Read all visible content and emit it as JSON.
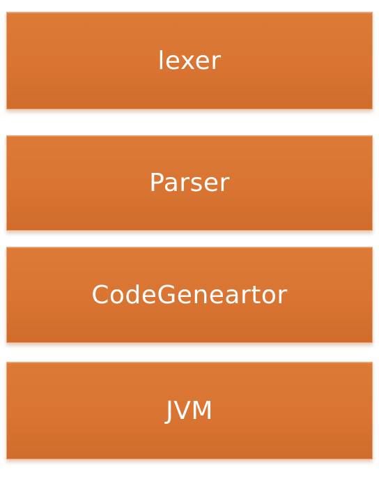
{
  "diagram": {
    "type": "layered-stack",
    "fill_color": "#d97432",
    "text_color": "#ffffff",
    "layers": [
      {
        "label": "lexer"
      },
      {
        "label": "Parser"
      },
      {
        "label": "CodeGeneartor"
      },
      {
        "label": "JVM"
      }
    ]
  }
}
